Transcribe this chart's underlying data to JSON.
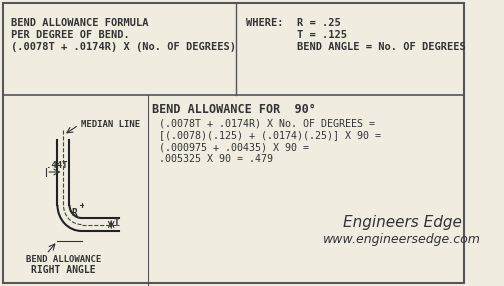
{
  "bg_color": "#f0ede0",
  "border_color": "#555555",
  "text_color": "#333333",
  "top_section": {
    "formula_line1": "BEND ALLOWANCE FORMULA",
    "formula_line2": "PER DEGREE OF BEND.",
    "formula_line3": "(.0078T + .0174R) X (No. OF DEGREES)",
    "where_label": "WHERE:",
    "where_r": "R = .25",
    "where_t": "T = .125",
    "where_angle": "BEND ANGLE = No. OF DEGREES"
  },
  "bottom_section": {
    "title": "BEND ALLOWANCE FOR  90°",
    "calc_line1": "(.0078T + .0174R) X No. OF DEGREES =",
    "calc_line2": "[(.0078)(.125) + (.0174)(.25)] X 90 =",
    "calc_line3": "(.000975 + .00435) X 90 =",
    "calc_line4": ".005325 X 90 = .479",
    "brand_line1": "Engineers Edge",
    "brand_line2": "www.engineersedge.com",
    "diagram_labels": {
      "median_line": "MEDIAN LINE",
      "dim_44t": ".44T",
      "label_r": "R",
      "label_t": "T",
      "bend_allowance": "BEND ALLOWANCE",
      "right_angle": "RIGHT ANGLE"
    }
  }
}
